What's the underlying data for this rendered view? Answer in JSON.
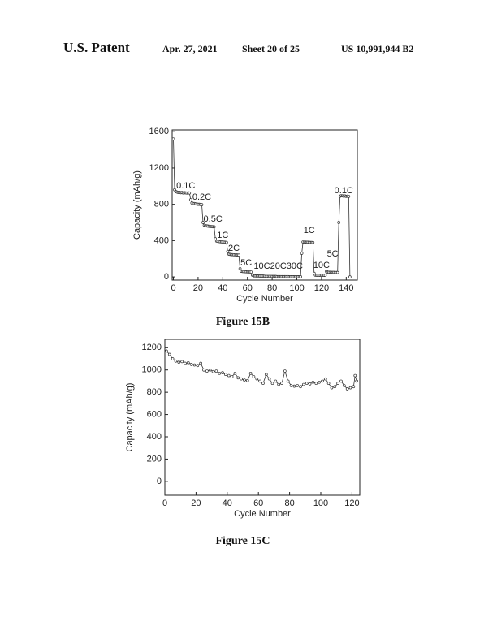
{
  "header": {
    "left": "U.S. Patent",
    "date": "Apr. 27, 2021",
    "sheet": "Sheet 20 of 25",
    "number": "US 10,991,944 B2"
  },
  "chart_data": [
    {
      "type": "line",
      "caption": "Figure 15B",
      "x_label": "Cycle Number",
      "y_label": "Capacity (mAh/g)",
      "color": "#333333",
      "xlim": [
        -1,
        149
      ],
      "ylim": [
        -35,
        1620
      ],
      "xticks": [
        0,
        20,
        40,
        60,
        80,
        100,
        120,
        140
      ],
      "yticks": [
        0,
        400,
        800,
        1200,
        1600
      ],
      "x": [
        0,
        1,
        2,
        3,
        4,
        5,
        6,
        7,
        8,
        9,
        10,
        11,
        12,
        13,
        14,
        15,
        16,
        17,
        18,
        19,
        20,
        21,
        22,
        23,
        24,
        25,
        26,
        27,
        28,
        29,
        30,
        31,
        32,
        33,
        34,
        35,
        36,
        37,
        38,
        39,
        40,
        41,
        42,
        43,
        44,
        45,
        46,
        47,
        48,
        49,
        50,
        51,
        52,
        53,
        54,
        55,
        56,
        57,
        58,
        59,
        60,
        61,
        62,
        63,
        64,
        65,
        66,
        67,
        68,
        69,
        70,
        71,
        72,
        73,
        74,
        75,
        76,
        77,
        78,
        79,
        80,
        81,
        82,
        83,
        84,
        85,
        86,
        87,
        88,
        89,
        90,
        91,
        92,
        93,
        94,
        95,
        96,
        97,
        98,
        99,
        100,
        101,
        102,
        103,
        104,
        105,
        106,
        107,
        108,
        109,
        110,
        111,
        112,
        113,
        114,
        115,
        116,
        117,
        118,
        119,
        120,
        121,
        122,
        123,
        124,
        125,
        126,
        127,
        128,
        129,
        130,
        131,
        132,
        133,
        134,
        135,
        136,
        137,
        138,
        139,
        140,
        141,
        142,
        143
      ],
      "values": [
        1520,
        960,
        940,
        935,
        930,
        932,
        928,
        930,
        925,
        928,
        926,
        924,
        927,
        925,
        850,
        815,
        810,
        808,
        805,
        803,
        800,
        800,
        798,
        796,
        600,
        570,
        565,
        562,
        560,
        558,
        556,
        555,
        553,
        552,
        420,
        395,
        392,
        390,
        388,
        386,
        385,
        383,
        382,
        380,
        280,
        250,
        248,
        246,
        245,
        244,
        243,
        242,
        241,
        240,
        90,
        62,
        60,
        59,
        58,
        57,
        56,
        55,
        55,
        54,
        20,
        12,
        12,
        11,
        11,
        11,
        10,
        10,
        10,
        10,
        7,
        6,
        6,
        6,
        6,
        6,
        5,
        5,
        5,
        5,
        3,
        3,
        3,
        3,
        3,
        3,
        3,
        3,
        3,
        3,
        2,
        2,
        2,
        2,
        2,
        2,
        2,
        2,
        2,
        2,
        260,
        385,
        384,
        383,
        382,
        382,
        381,
        380,
        380,
        379,
        40,
        20,
        19,
        19,
        18,
        18,
        18,
        17,
        17,
        17,
        60,
        52,
        51,
        51,
        50,
        50,
        50,
        49,
        49,
        49,
        600,
        890,
        895,
        893,
        890,
        892,
        888,
        890,
        887,
        0
      ],
      "annotations": [
        {
          "text": "0.1C",
          "x": 10,
          "y": 1000
        },
        {
          "text": "0.2C",
          "x": 23,
          "y": 875
        },
        {
          "text": "0.5C",
          "x": 32,
          "y": 634
        },
        {
          "text": "1C",
          "x": 40,
          "y": 455
        },
        {
          "text": "2C",
          "x": 49,
          "y": 312
        },
        {
          "text": "5C",
          "x": 59,
          "y": 152
        },
        {
          "text": "10C20C30C",
          "x": 85,
          "y": 116
        },
        {
          "text": "1C",
          "x": 110,
          "y": 509
        },
        {
          "text": "10C",
          "x": 120,
          "y": 125
        },
        {
          "text": "5C",
          "x": 129,
          "y": 250
        },
        {
          "text": "0.1C",
          "x": 138,
          "y": 946
        }
      ]
    },
    {
      "type": "line",
      "caption": "Figure 15C",
      "x_label": "Cycle Number",
      "y_label": "Capacity (mAh/g)",
      "color": "#333333",
      "xlim": [
        0,
        125
      ],
      "ylim": [
        -125,
        1275
      ],
      "xticks": [
        0,
        20,
        40,
        60,
        80,
        100,
        120
      ],
      "yticks": [
        0,
        200,
        400,
        600,
        800,
        1000,
        1200
      ],
      "x": [
        1,
        3,
        5,
        7,
        9,
        11,
        13,
        15,
        17,
        19,
        21,
        23,
        25,
        27,
        29,
        31,
        33,
        35,
        37,
        39,
        41,
        43,
        45,
        47,
        49,
        51,
        53,
        55,
        57,
        59,
        61,
        63,
        65,
        67,
        69,
        71,
        73,
        75,
        77,
        79,
        81,
        83,
        85,
        87,
        89,
        91,
        93,
        95,
        97,
        99,
        101,
        103,
        105,
        107,
        109,
        111,
        113,
        115,
        117,
        119,
        121,
        122,
        123
      ],
      "values": [
        1170,
        1140,
        1100,
        1080,
        1070,
        1075,
        1060,
        1065,
        1050,
        1045,
        1040,
        1060,
        1000,
        990,
        1000,
        985,
        990,
        970,
        975,
        960,
        950,
        940,
        970,
        930,
        920,
        910,
        905,
        970,
        940,
        920,
        900,
        880,
        960,
        920,
        880,
        900,
        870,
        880,
        990,
        900,
        860,
        855,
        860,
        850,
        870,
        880,
        875,
        890,
        880,
        890,
        900,
        920,
        880,
        840,
        850,
        880,
        900,
        860,
        830,
        840,
        850,
        950,
        900
      ],
      "annotations": []
    }
  ]
}
